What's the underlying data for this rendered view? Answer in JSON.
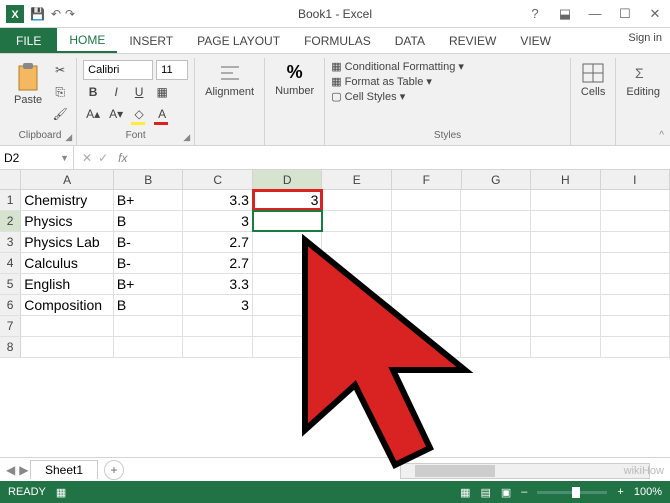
{
  "title": "Book1 - Excel",
  "signin": "Sign in",
  "tabs": {
    "file": "FILE",
    "home": "HOME",
    "insert": "INSERT",
    "pagelayout": "PAGE LAYOUT",
    "formulas": "FORMULAS",
    "data": "DATA",
    "review": "REVIEW",
    "view": "VIEW"
  },
  "ribbon": {
    "clipboard": {
      "paste": "Paste",
      "label": "Clipboard"
    },
    "font": {
      "name": "Calibri",
      "size": "11",
      "label": "Font"
    },
    "alignment": {
      "btn": "Alignment",
      "label": ""
    },
    "number": {
      "btn": "Number",
      "pct": "%",
      "label": ""
    },
    "styles": {
      "cf": "Conditional Formatting",
      "fat": "Format as Table",
      "cs": "Cell Styles",
      "label": "Styles"
    },
    "cells": {
      "btn": "Cells"
    },
    "editing": {
      "btn": "Editing"
    }
  },
  "namebox": "D2",
  "fx": "fx",
  "columns": [
    "A",
    "B",
    "C",
    "D",
    "E",
    "F",
    "G",
    "H",
    "I"
  ],
  "rows": [
    {
      "n": "1",
      "a": "Chemistry",
      "b": "B+",
      "c": "3.3",
      "d": "3"
    },
    {
      "n": "2",
      "a": "Physics",
      "b": "B",
      "c": "3",
      "d": ""
    },
    {
      "n": "3",
      "a": "Physics Lab",
      "b": "B-",
      "c": "2.7",
      "d": ""
    },
    {
      "n": "4",
      "a": "Calculus",
      "b": "B-",
      "c": "2.7",
      "d": ""
    },
    {
      "n": "5",
      "a": "English",
      "b": "B+",
      "c": "3.3",
      "d": ""
    },
    {
      "n": "6",
      "a": "Composition",
      "b": "B",
      "c": "3",
      "d": ""
    },
    {
      "n": "7",
      "a": "",
      "b": "",
      "c": "",
      "d": ""
    },
    {
      "n": "8",
      "a": "",
      "b": "",
      "c": "",
      "d": ""
    }
  ],
  "sheet": {
    "name": "Sheet1",
    "add": "+"
  },
  "status": {
    "ready": "READY",
    "zoom": "100%"
  },
  "watermark": "wikiHow",
  "colors": {
    "accent": "#217346",
    "highlight": "#d92222"
  }
}
